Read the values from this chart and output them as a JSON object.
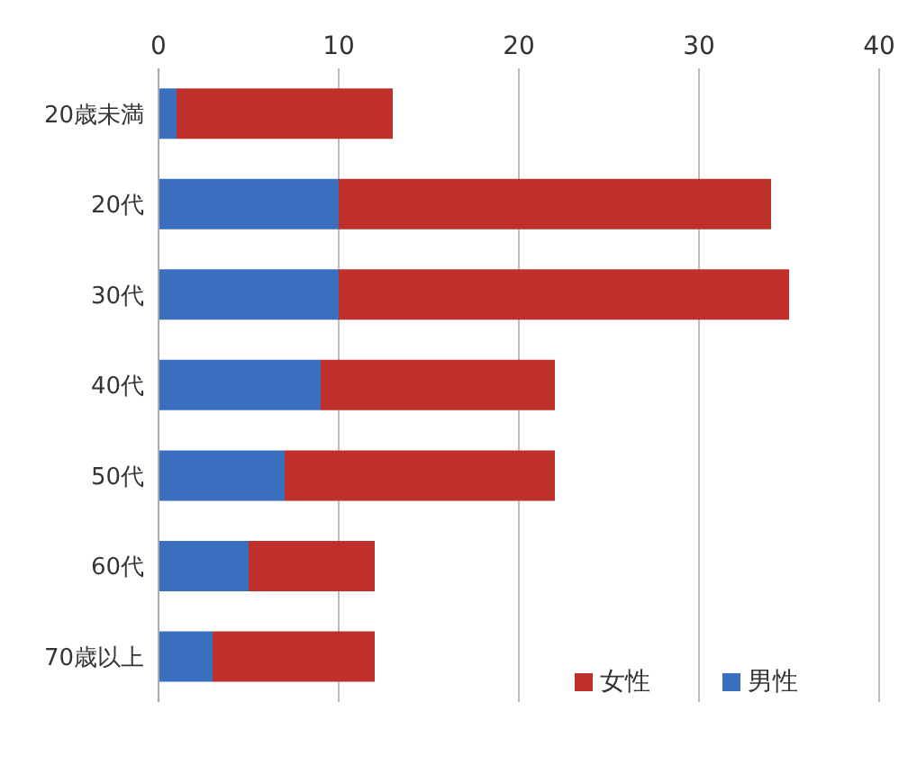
{
  "chart_data": {
    "type": "bar",
    "orientation": "horizontal",
    "stacked": true,
    "categories": [
      "20歳未満",
      "20代",
      "30代",
      "40代",
      "50代",
      "60代",
      "70歳以上"
    ],
    "series": [
      {
        "name": "男性",
        "color": "#3a6fc0",
        "values": [
          1,
          10,
          10,
          9,
          7,
          5,
          3
        ]
      },
      {
        "name": "女性",
        "color": "#c0302a",
        "values": [
          12,
          24,
          25,
          13,
          15,
          7,
          9
        ]
      }
    ],
    "xlim": [
      0,
      40
    ],
    "xticks": [
      0,
      10,
      20,
      30,
      40
    ],
    "grid": "x",
    "legend": "bottom right"
  }
}
